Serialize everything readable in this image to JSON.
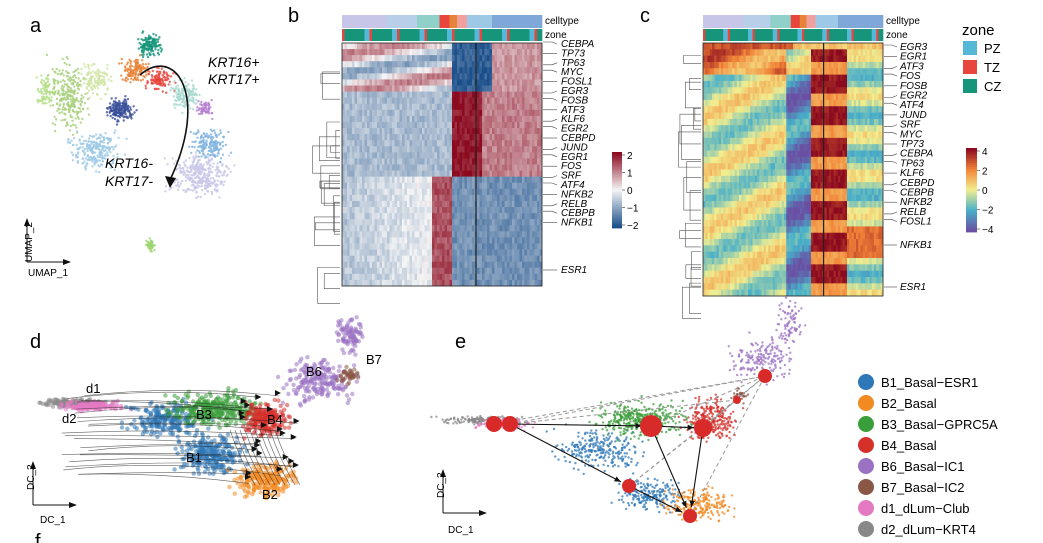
{
  "panel_labels": {
    "a": "a",
    "b": "b",
    "c": "c",
    "d": "d",
    "e": "e",
    "f": "f"
  },
  "umap": {
    "annotation_top": [
      "KRT16+",
      "KRT17+"
    ],
    "annotation_bottom": [
      "KRT16-",
      "KRT17-"
    ],
    "xaxis": "UMAP_1",
    "yaxis": "UMAP_2"
  },
  "heatmap_b": {
    "track_labels": [
      "celltype",
      "zone"
    ],
    "genes": [
      "CEBPA",
      "TP73",
      "TP63",
      "MYC",
      "FOSL1",
      "EGR3",
      "FOSB",
      "ATF3",
      "KLF6",
      "EGR2",
      "CEBPD",
      "JUND",
      "EGR1",
      "FOS",
      "SRF",
      "ATF4",
      "NFKB2",
      "RELB",
      "CEBPB",
      "NFKB1"
    ],
    "extra_gene": "ESR1",
    "colorbar_ticks": [
      "2",
      "1",
      "0",
      "−1",
      "−2"
    ],
    "colors": {
      "high": "#8b0a1f",
      "mid": "#f5f5f5",
      "low": "#1b4f8a"
    }
  },
  "heatmap_c": {
    "track_labels": [
      "celltype",
      "zone"
    ],
    "genes": [
      "EGR3",
      "EGR1",
      "ATF3",
      "FOS",
      "FOSB",
      "EGR2",
      "ATF4",
      "JUND",
      "SRF",
      "MYC",
      "TP73",
      "CEBPA",
      "TP63",
      "KLF6",
      "CEBPD",
      "CEBPB",
      "NFKB2",
      "RELB",
      "FOSL1"
    ],
    "extra_genes": [
      "NFKB1",
      "ESR1"
    ],
    "colorbar_ticks": [
      "4",
      "2",
      "0",
      "−2",
      "−4"
    ],
    "colors": {
      "high": "#8b0a1f",
      "mid": "#f2ee8f",
      "low": "#6a4fa3"
    }
  },
  "zone_legend": {
    "title": "zone",
    "items": [
      {
        "label": "PZ",
        "color": "#56b8d9"
      },
      {
        "label": "TZ",
        "color": "#e8453c"
      },
      {
        "label": "CZ",
        "color": "#17957a"
      }
    ]
  },
  "diffusion": {
    "xaxis": "DC_1",
    "yaxis": "DC_2",
    "cluster_labels": [
      "d1",
      "d2",
      "B3",
      "B4",
      "B1",
      "B2",
      "B6",
      "B7"
    ]
  },
  "celltype_legend": [
    {
      "label": "B1_Basal−ESR1",
      "color": "#2f78b8"
    },
    {
      "label": "B2_Basal",
      "color": "#f28a22"
    },
    {
      "label": "B3_Basal−GPRC5A",
      "color": "#3a9e3a"
    },
    {
      "label": "B4_Basal",
      "color": "#d6302b"
    },
    {
      "label": "B6_Basal−IC1",
      "color": "#9b72c2"
    },
    {
      "label": "B7_Basal−IC2",
      "color": "#8a5645"
    },
    {
      "label": "d1_dLum−Club",
      "color": "#e57ac4"
    },
    {
      "label": "d2_dLum−KRT4",
      "color": "#888888"
    }
  ],
  "chart_data": [
    {
      "type": "scatter",
      "title": "",
      "xlabel": "UMAP_1",
      "ylabel": "UMAP_2"
    },
    {
      "type": "heatmap",
      "title": "",
      "rows": [
        "CEBPA",
        "TP73",
        "TP63",
        "MYC",
        "FOSL1",
        "EGR3",
        "FOSB",
        "ATF3",
        "KLF6",
        "EGR2",
        "CEBPD",
        "JUND",
        "EGR1",
        "FOS",
        "SRF",
        "ATF4",
        "NFKB2",
        "RELB",
        "CEBPB",
        "NFKB1",
        "ESR1"
      ],
      "color_range": [
        -2,
        2
      ]
    },
    {
      "type": "heatmap",
      "title": "",
      "rows": [
        "EGR3",
        "EGR1",
        "ATF3",
        "FOS",
        "FOSB",
        "EGR2",
        "ATF4",
        "JUND",
        "SRF",
        "MYC",
        "TP73",
        "CEBPA",
        "TP63",
        "KLF6",
        "CEBPD",
        "CEBPB",
        "NFKB2",
        "RELB",
        "FOSL1",
        "NFKB1",
        "ESR1"
      ],
      "color_range": [
        -4,
        4
      ]
    },
    {
      "type": "scatter",
      "title": "",
      "xlabel": "DC_1",
      "ylabel": "DC_2"
    },
    {
      "type": "scatter",
      "title": "",
      "xlabel": "DC_1",
      "ylabel": "DC_2"
    }
  ]
}
